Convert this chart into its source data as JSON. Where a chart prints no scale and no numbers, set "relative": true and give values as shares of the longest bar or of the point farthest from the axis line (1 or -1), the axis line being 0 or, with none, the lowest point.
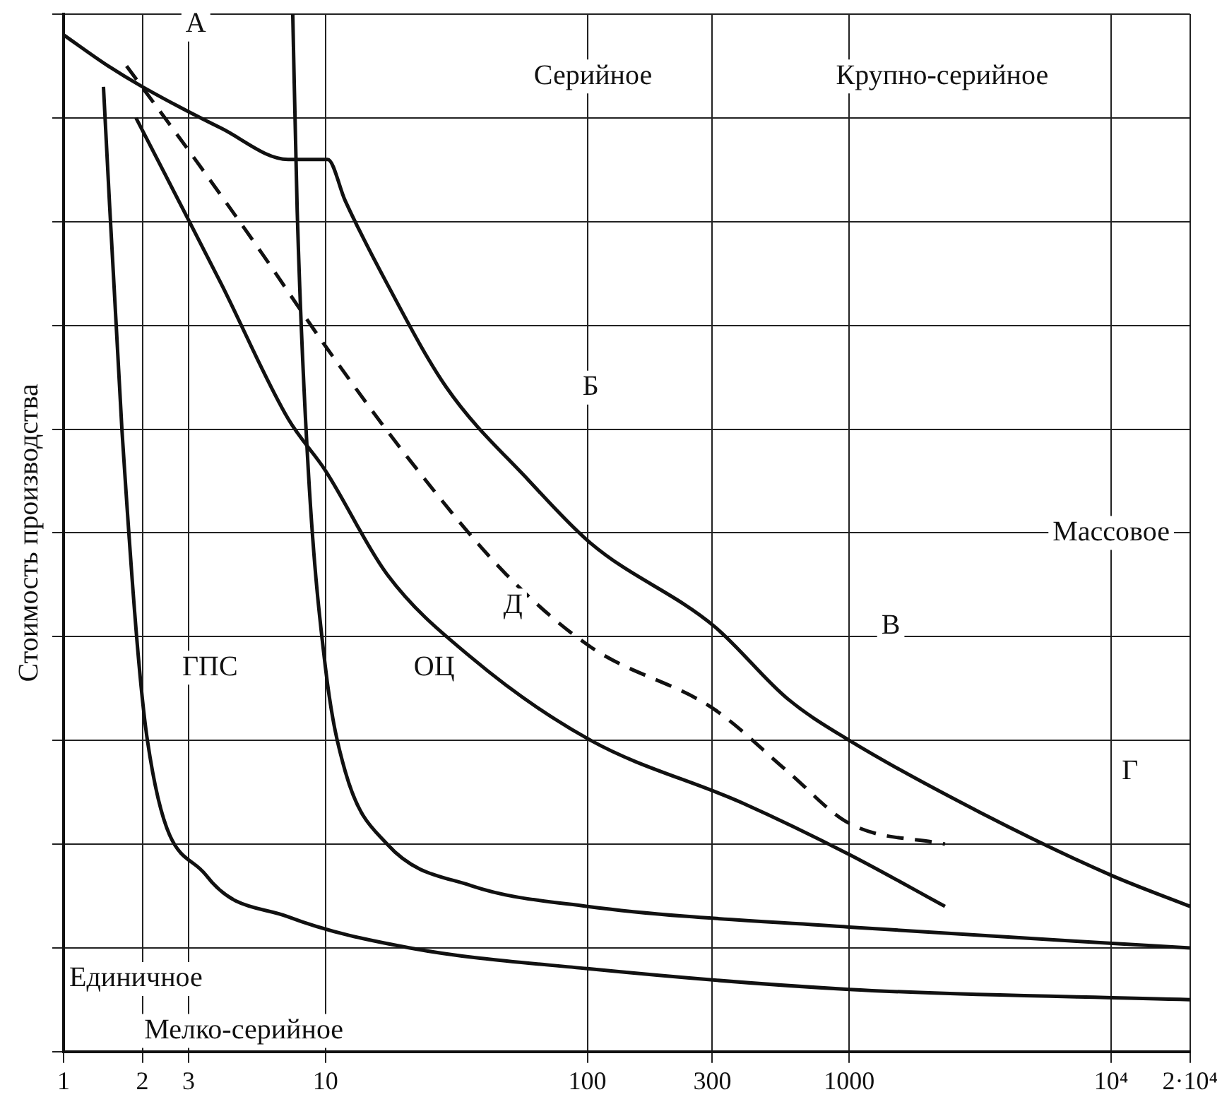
{
  "chart_data": {
    "type": "line",
    "ylabel": "Стоимость производства",
    "log": "x",
    "relative": true,
    "grid": true,
    "legend": false,
    "marker": "none",
    "xlim": [
      1,
      20000
    ],
    "xticks": [
      1,
      2,
      3,
      10,
      100,
      300,
      1000,
      {
        "value": 10000,
        "label": "10⁴"
      },
      {
        "value": 20000,
        "label": "2·10⁴"
      }
    ],
    "series": [
      {
        "color": "#111111",
        "x": [
          1,
          1.48,
          2,
          4,
          7.2,
          10.2,
          11.9,
          17.2,
          29,
          60,
          103,
          305,
          582,
          1000,
          3190,
          10000,
          20000
        ],
        "values": [
          0.98,
          0.95,
          0.93,
          0.89,
          0.86,
          0.86,
          0.82,
          0.74,
          0.64,
          0.55,
          0.49,
          0.41,
          0.34,
          0.3,
          0.23,
          0.17,
          0.14
        ]
      },
      {
        "color": "#111111",
        "line_style": "dashed",
        "x": [
          1.74,
          3.18,
          5.7,
          10,
          21,
          49,
          103,
          305,
          582,
          1000,
          2320
        ],
        "values": [
          0.95,
          0.86,
          0.77,
          0.68,
          0.57,
          0.46,
          0.39,
          0.33,
          0.27,
          0.22,
          0.2
        ]
      },
      {
        "color": "#111111",
        "x": [
          1.89,
          4,
          7.2,
          10,
          17.2,
          36,
          103,
          388,
          1000,
          2320
        ],
        "values": [
          0.9,
          0.74,
          0.61,
          0.56,
          0.46,
          0.38,
          0.3,
          0.24,
          0.19,
          0.14
        ]
      },
      {
        "color": "#111111",
        "x": [
          1.42,
          1.67,
          2.09,
          3.5,
          7.2,
          21,
          100,
          1000,
          20000
        ],
        "values": [
          0.93,
          0.6,
          0.3,
          0.17,
          0.13,
          0.1,
          0.08,
          0.06,
          0.05
        ]
      },
      {
        "color": "#111111",
        "x": [
          7.5,
          7.8,
          8.6,
          10,
          11.9,
          17.2,
          36,
          100,
          1000,
          20000
        ],
        "values": [
          1,
          0.81,
          0.56,
          0.37,
          0.27,
          0.2,
          0.16,
          0.14,
          0.12,
          0.1
        ]
      }
    ],
    "annotations": [
      {
        "text": "А",
        "x": 3.2,
        "y": 0.99
      },
      {
        "text": "Б",
        "x": 103,
        "y": 0.64
      },
      {
        "text": "В",
        "x": 1440,
        "y": 0.41
      },
      {
        "text": "Г",
        "x": 11800,
        "y": 0.27
      },
      {
        "text": "Д",
        "x": 52,
        "y": 0.43
      },
      {
        "text": "ОЦ",
        "x": 26,
        "y": 0.37
      },
      "ГПС",
      "Серийное",
      "Крупно-серийное",
      "Массовое",
      "Единичное",
      "Мелко-серийное"
    ]
  }
}
